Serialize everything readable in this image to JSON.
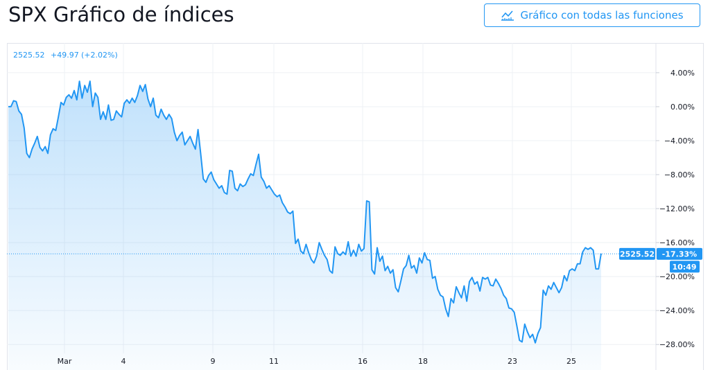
{
  "header": {
    "title": "SPX Gráfico de índices",
    "full_chart_label": "Gráfico con todas las funciones",
    "full_chart_icon": "line-chart-icon"
  },
  "colors": {
    "accent": "#2196f3",
    "grid": "#e0e3eb",
    "text": "#131722"
  },
  "chart_data": {
    "type": "area",
    "title": "",
    "legend": {
      "last": "2525.52",
      "change": "+49.97",
      "change_pct": "(+2.02%)"
    },
    "y_ticks": [
      "4.00%",
      "0.00%",
      "−4.00%",
      "−8.00%",
      "−12.00%",
      "−16.00%",
      "−20.00%",
      "−24.00%",
      "−28.00%"
    ],
    "y_tick_values": [
      4,
      0,
      -4,
      -8,
      -12,
      -16,
      -20,
      -24,
      -28
    ],
    "x_ticks": [
      "Mar",
      "4",
      "9",
      "11",
      "16",
      "18",
      "23",
      "25"
    ],
    "ylim": [
      -31,
      7.5
    ],
    "last_value": -17.33,
    "last_value_label": "-17.33%",
    "price_label": "2525.52",
    "time_label": "10:49",
    "grid": true,
    "series": [
      {
        "values": [
          0,
          0,
          0.7,
          0.6,
          -0.5,
          -0.9,
          -2.5,
          -5.5,
          -6,
          -5,
          -4.3,
          -3.5,
          -4.8,
          -5.2,
          -4.7,
          -5.5,
          -3.3,
          -2.6,
          -2.8,
          -1.2,
          0.5,
          0.2,
          1.1,
          1.4,
          1,
          1.9,
          0.8,
          3,
          1,
          2.5,
          1.7,
          3,
          0,
          1.6,
          1.1,
          -1.5,
          -0.6,
          -1.5,
          0.2,
          -1.6,
          -1.5,
          -0.5,
          -0.9,
          -1.2,
          0.4,
          0.8,
          0.4,
          1,
          0.5,
          1.3,
          2.5,
          1.8,
          2.6,
          0.9,
          0,
          1,
          -1,
          -1.3,
          -0.3,
          -1,
          -1.5,
          -0.9,
          -1.4,
          -3,
          -4,
          -3.4,
          -3,
          -4.5,
          -4,
          -3.5,
          -4.3,
          -5,
          -2.7,
          -5.5,
          -8.5,
          -8.9,
          -8.1,
          -7.7,
          -8.6,
          -9.1,
          -9.6,
          -9.3,
          -10.1,
          -10.3,
          -7.5,
          -7.6,
          -9.6,
          -9.9,
          -9.1,
          -9.4,
          -9.2,
          -8.5,
          -7.9,
          -8.1,
          -6.8,
          -5.6,
          -8.3,
          -8.8,
          -9.6,
          -9.3,
          -9.8,
          -10.3,
          -10.6,
          -10.4,
          -11.3,
          -11.8,
          -12.4,
          -12.6,
          -12.3,
          -16.1,
          -15.6,
          -17,
          -17.3,
          -16.2,
          -17.2,
          -18,
          -18.4,
          -17.6,
          -16,
          -16.8,
          -17.5,
          -18,
          -19.3,
          -19.6,
          -16.5,
          -17.3,
          -17.5,
          -17.1,
          -17.4,
          -15.9,
          -17.6,
          -16.9,
          -17.6,
          -16.2,
          -17,
          -16.7,
          -11.1,
          -11.2,
          -19.2,
          -19.7,
          -16.6,
          -18.2,
          -17.6,
          -19.3,
          -18.8,
          -19.6,
          -19.2,
          -21.3,
          -21.8,
          -20.5,
          -19.1,
          -18.7,
          -17.5,
          -19,
          -18.7,
          -19.6,
          -17.8,
          -18.4,
          -17.2,
          -18,
          -18.1,
          -20.2,
          -20,
          -21.5,
          -22.2,
          -22.4,
          -23.8,
          -24.7,
          -22.6,
          -23.1,
          -21.2,
          -21.9,
          -22.5,
          -21.1,
          -22.9,
          -20.6,
          -20.1,
          -20.9,
          -20.6,
          -21.7,
          -20.1,
          -20.3,
          -20.1,
          -21,
          -21.1,
          -20.3,
          -20.8,
          -21.4,
          -22.2,
          -22.6,
          -23.7,
          -23.8,
          -24.2,
          -25.8,
          -27.5,
          -27.7,
          -25.6,
          -26.5,
          -27.2,
          -26.8,
          -27.8,
          -26.7,
          -26,
          -21.6,
          -22.2,
          -21.1,
          -21.5,
          -20.7,
          -21.3,
          -21.9,
          -21.3,
          -19.9,
          -20.5,
          -19.3,
          -19.1,
          -19.3,
          -18.5,
          -18.5,
          -17.1,
          -16.6,
          -16.8,
          -16.6,
          -16.9,
          -19.1,
          -19.1,
          -17.3
        ]
      }
    ]
  }
}
